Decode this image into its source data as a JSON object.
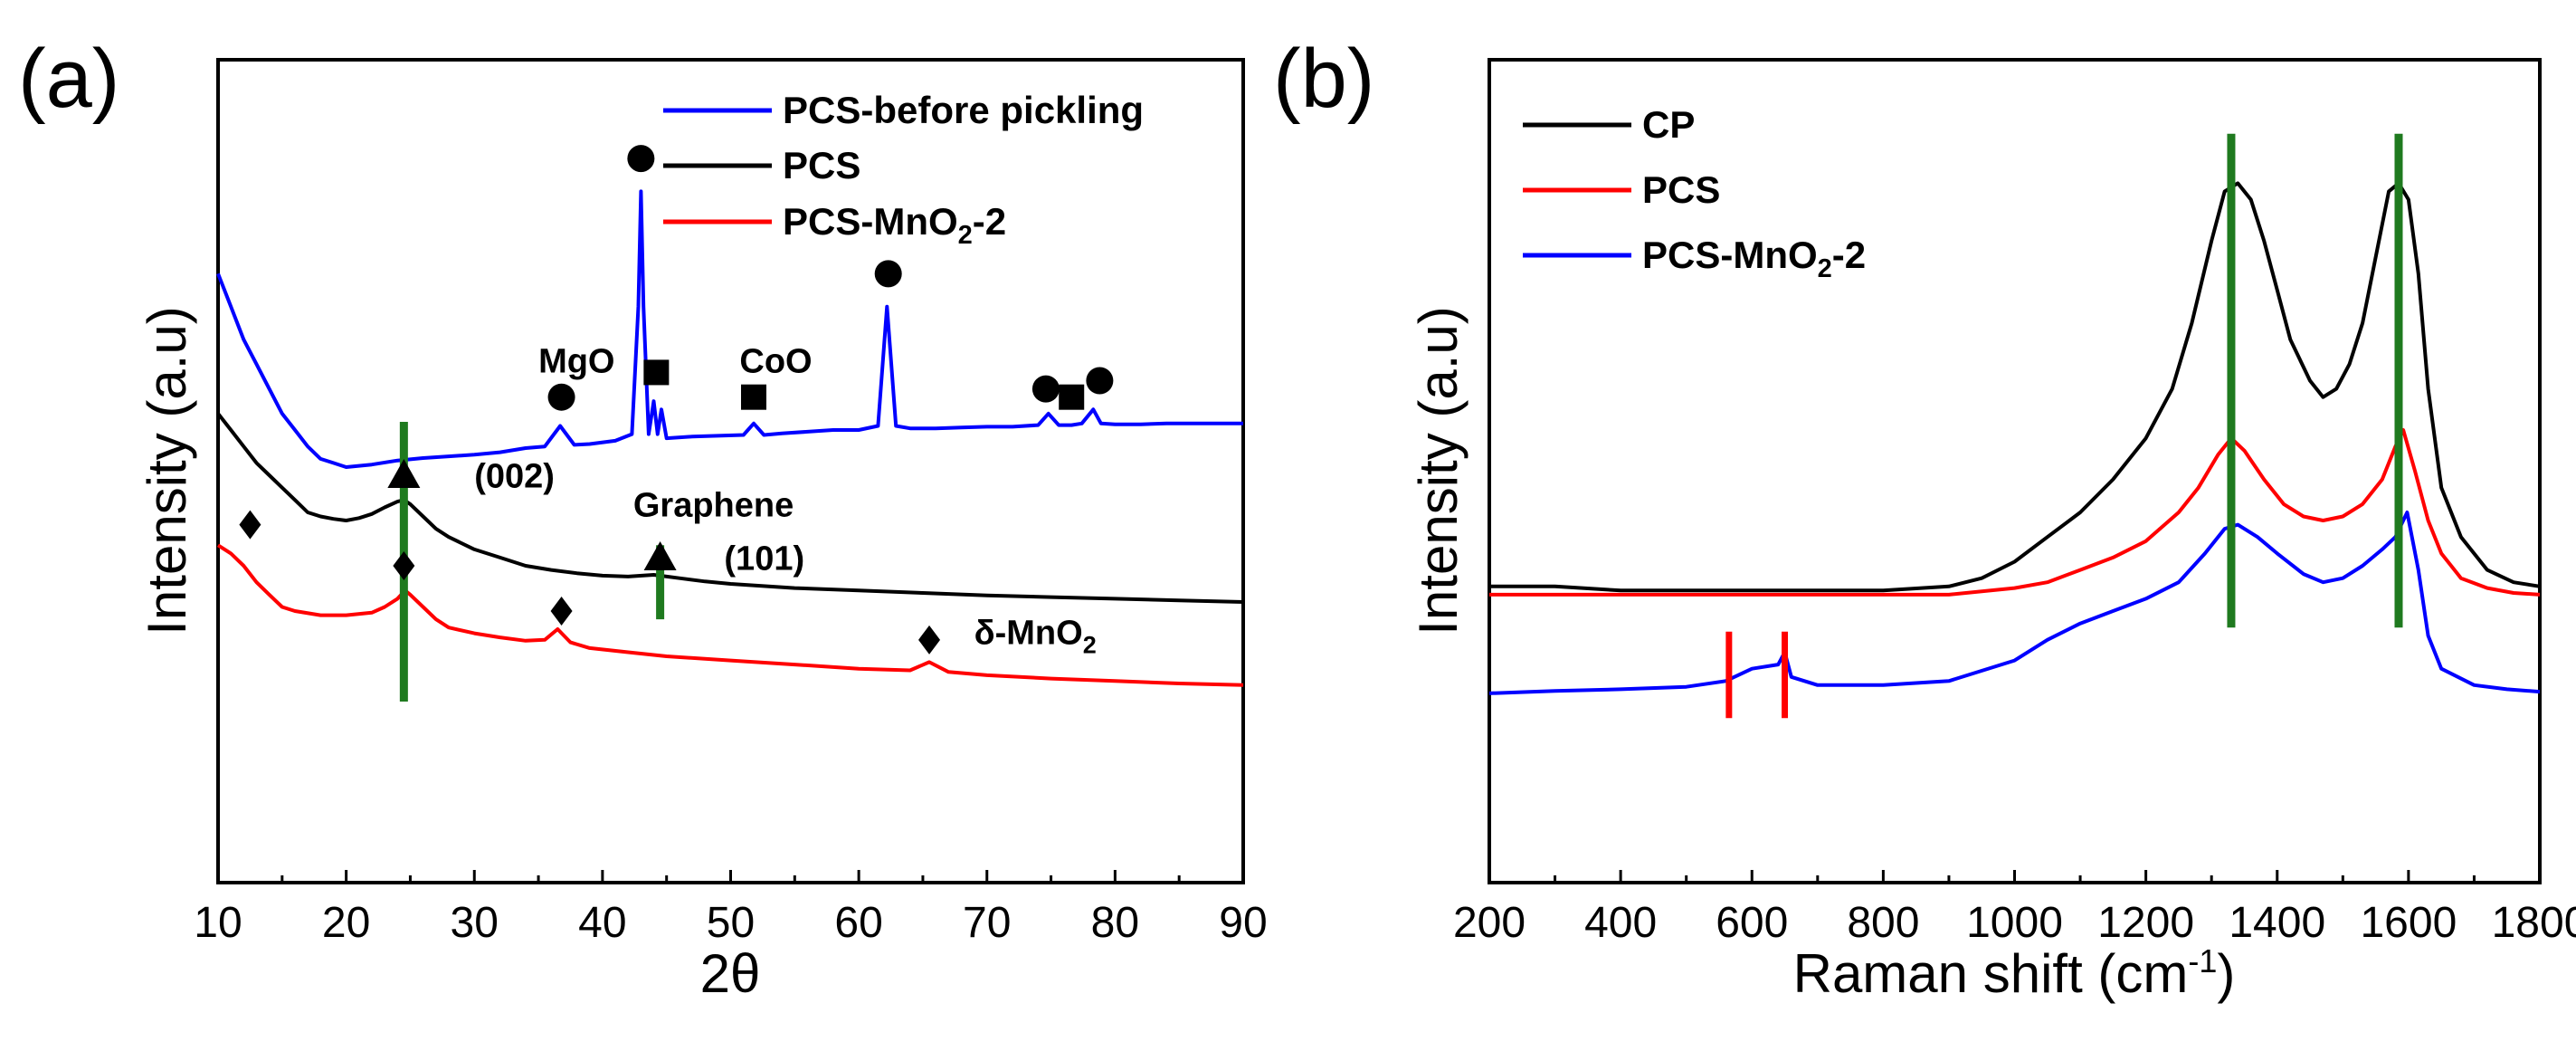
{
  "chart_data": [
    {
      "panel_label": "(a)",
      "type": "line",
      "xlabel": "2θ",
      "ylabel": "Intensity (a.u)",
      "xlim": [
        10,
        90
      ],
      "ylim": [
        0,
        100
      ],
      "x_ticks": [
        10,
        20,
        30,
        40,
        50,
        60,
        70,
        80,
        90
      ],
      "y_ticks_labeled": false,
      "grid": false,
      "legend_position": "top-right",
      "series": [
        {
          "name": "PCS-before pickling",
          "color": "#0000ff",
          "x": [
            10,
            11,
            12,
            13,
            14,
            15,
            16,
            17,
            18,
            19,
            20,
            22,
            24,
            26,
            28,
            30,
            32,
            34,
            35.5,
            36.7,
            37.8,
            39,
            41,
            42.3,
            42.8,
            43.0,
            43.2,
            43.6,
            44.0,
            44.3,
            44.6,
            45.0,
            47,
            49,
            51,
            51.8,
            52.6,
            54,
            56,
            58,
            60,
            61.5,
            62.2,
            62.9,
            64,
            66,
            68,
            70,
            72,
            74,
            74.8,
            75.6,
            76.6,
            77.4,
            78.3,
            78.9,
            80,
            82,
            84,
            86,
            88,
            90
          ],
          "y": [
            74,
            70,
            66,
            63,
            60,
            57,
            55,
            53,
            51.5,
            51,
            50.5,
            50.8,
            51.3,
            51.6,
            51.8,
            52,
            52.3,
            52.8,
            53,
            55.5,
            53.2,
            53.3,
            53.7,
            54.5,
            70,
            84,
            70,
            54.5,
            58.5,
            54.5,
            57.5,
            54,
            54.2,
            54.3,
            54.4,
            55.8,
            54.4,
            54.6,
            54.8,
            55,
            55,
            55.5,
            70,
            55.5,
            55.2,
            55.2,
            55.3,
            55.4,
            55.4,
            55.6,
            57,
            55.6,
            55.6,
            55.8,
            57.5,
            55.8,
            55.7,
            55.7,
            55.8,
            55.8,
            55.8,
            55.8
          ]
        },
        {
          "name": "PCS",
          "color": "#000000",
          "x": [
            10,
            11,
            12,
            13,
            14,
            15,
            16,
            17,
            18,
            19,
            20,
            21,
            22,
            23,
            24,
            24.5,
            25,
            26,
            27,
            28,
            30,
            32,
            34,
            36,
            38,
            40,
            42,
            44,
            46,
            48,
            50,
            55,
            60,
            65,
            70,
            75,
            80,
            85,
            90
          ],
          "y": [
            57,
            55,
            53,
            51,
            49.5,
            48,
            46.5,
            45,
            44.5,
            44.2,
            44,
            44.3,
            44.8,
            45.6,
            46.3,
            46.5,
            46,
            44.5,
            43,
            42,
            40.5,
            39.5,
            38.5,
            38,
            37.6,
            37.3,
            37.2,
            37.4,
            37,
            36.6,
            36.3,
            35.8,
            35.5,
            35.2,
            34.9,
            34.7,
            34.5,
            34.3,
            34.1
          ]
        },
        {
          "name": "PCS-MnO2-2",
          "color": "#ff0000",
          "x": [
            10,
            11,
            12,
            13,
            14,
            15,
            16,
            18,
            20,
            22,
            23,
            24,
            24.6,
            25,
            26,
            27,
            28,
            30,
            32,
            34,
            35.5,
            36.5,
            37.5,
            39,
            42,
            45,
            50,
            55,
            60,
            64,
            65.5,
            67,
            70,
            75,
            80,
            85,
            90
          ],
          "y": [
            41,
            40,
            38.5,
            36.5,
            35,
            33.5,
            33,
            32.5,
            32.5,
            32.8,
            33.5,
            34.5,
            35.5,
            35,
            33.5,
            32,
            31,
            30.3,
            29.8,
            29.4,
            29.5,
            30.8,
            29.2,
            28.5,
            28,
            27.5,
            27,
            26.5,
            26,
            25.8,
            26.8,
            25.6,
            25.2,
            24.8,
            24.5,
            24.2,
            24
          ]
        }
      ],
      "reference_lines": [
        {
          "x": 24.5,
          "color": "#1f7a1f"
        },
        {
          "x": 44.5,
          "color": "#1f7a1f"
        }
      ],
      "markers": [
        {
          "shape": "circle",
          "x": 36.8,
          "y": 59
        },
        {
          "shape": "circle",
          "x": 43.0,
          "y": 88
        },
        {
          "shape": "circle",
          "x": 62.3,
          "y": 74
        },
        {
          "shape": "circle",
          "x": 74.6,
          "y": 60
        },
        {
          "shape": "circle",
          "x": 78.8,
          "y": 61
        },
        {
          "shape": "square",
          "x": 44.2,
          "y": 62
        },
        {
          "shape": "square",
          "x": 51.8,
          "y": 59
        },
        {
          "shape": "square",
          "x": 76.6,
          "y": 59
        },
        {
          "shape": "triangle",
          "x": 24.5,
          "y": 49.5
        },
        {
          "shape": "triangle",
          "x": 44.5,
          "y": 39.5
        },
        {
          "shape": "diamond",
          "x": 12.5,
          "y": 43.5
        },
        {
          "shape": "diamond",
          "x": 24.5,
          "y": 38.5
        },
        {
          "shape": "diamond",
          "x": 36.8,
          "y": 33
        },
        {
          "shape": "diamond",
          "x": 65.5,
          "y": 29.5
        }
      ],
      "annotations": [
        {
          "text": "MgO",
          "x": 35,
          "y": 62
        },
        {
          "text": "CoO",
          "x": 50.7,
          "y": 62
        },
        {
          "text": "(002)",
          "x": 30,
          "y": 48
        },
        {
          "text": "Graphene",
          "x": 42.4,
          "y": 44.5
        },
        {
          "text": "(101)",
          "x": 49.5,
          "y": 38
        }
      ],
      "annotation_rich": {
        "prefix": "δ-MnO",
        "subscript": "2",
        "x": 69,
        "y": 29
      }
    },
    {
      "panel_label": "(b)",
      "type": "line",
      "xlabel_prefix": "Raman shift (cm",
      "xlabel_superscript": "-1",
      "xlabel_suffix": ")",
      "ylabel": "Intensity (a.u)",
      "xlim": [
        200,
        1800
      ],
      "ylim": [
        0,
        100
      ],
      "x_ticks": [
        200,
        400,
        600,
        800,
        1000,
        1200,
        1400,
        1600,
        1800
      ],
      "y_ticks_labeled": false,
      "grid": false,
      "legend_position": "top-left",
      "series": [
        {
          "name": "CP",
          "color": "#000000",
          "x": [
            200,
            300,
            400,
            500,
            600,
            700,
            800,
            900,
            950,
            1000,
            1050,
            1100,
            1150,
            1200,
            1240,
            1270,
            1300,
            1320,
            1340,
            1360,
            1380,
            1400,
            1420,
            1450,
            1470,
            1490,
            1510,
            1530,
            1550,
            1570,
            1585,
            1600,
            1615,
            1630,
            1650,
            1680,
            1720,
            1760,
            1800
          ],
          "y": [
            36,
            36,
            35.5,
            35.5,
            35.5,
            35.5,
            35.5,
            36,
            37,
            39,
            42,
            45,
            49,
            54,
            60,
            68,
            78,
            84,
            85,
            83,
            78,
            72,
            66,
            61,
            59,
            60,
            63,
            68,
            76,
            84,
            85,
            83,
            74,
            60,
            48,
            42,
            38,
            36.5,
            36
          ]
        },
        {
          "name": "PCS",
          "color": "#ff0000",
          "x": [
            200,
            300,
            400,
            500,
            600,
            700,
            800,
            900,
            1000,
            1050,
            1100,
            1150,
            1200,
            1250,
            1280,
            1310,
            1330,
            1350,
            1380,
            1410,
            1440,
            1470,
            1500,
            1530,
            1560,
            1580,
            1592,
            1610,
            1630,
            1650,
            1680,
            1720,
            1760,
            1800
          ],
          "y": [
            35,
            35,
            35,
            35,
            35,
            35,
            35,
            35,
            35.8,
            36.5,
            38,
            39.5,
            41.5,
            45,
            48,
            52,
            54,
            52.5,
            49,
            46,
            44.5,
            44,
            44.5,
            46,
            49,
            53,
            55,
            50,
            44,
            40,
            37,
            35.8,
            35.2,
            35
          ]
        },
        {
          "name": "PCS-MnO2-2",
          "color": "#0000ff",
          "x": [
            200,
            300,
            400,
            500,
            560,
            600,
            640,
            650,
            660,
            700,
            800,
            900,
            1000,
            1050,
            1100,
            1150,
            1200,
            1250,
            1290,
            1320,
            1340,
            1370,
            1400,
            1440,
            1470,
            1500,
            1530,
            1560,
            1580,
            1598,
            1615,
            1630,
            1650,
            1700,
            1750,
            1800
          ],
          "y": [
            23,
            23.3,
            23.5,
            23.8,
            24.5,
            26,
            26.5,
            28,
            25,
            24,
            24,
            24.5,
            27,
            29.5,
            31.5,
            33,
            34.5,
            36.5,
            40,
            43,
            43.5,
            42,
            40,
            37.5,
            36.5,
            37,
            38.5,
            40.5,
            42,
            45,
            38,
            30,
            26,
            24,
            23.5,
            23.2
          ]
        }
      ],
      "reference_lines_green": [
        {
          "x": 1330,
          "color": "#1f7a1f"
        },
        {
          "x": 1585,
          "color": "#1f7a1f"
        }
      ],
      "reference_lines_red": [
        {
          "x": 565,
          "color": "#ff0000"
        },
        {
          "x": 650,
          "color": "#ff0000"
        }
      ],
      "legend_labels": [
        {
          "prefix": "CP",
          "subscript": "",
          "suffix": ""
        },
        {
          "prefix": "PCS",
          "subscript": "",
          "suffix": ""
        },
        {
          "prefix": "PCS-MnO",
          "subscript": "2",
          "suffix": "-2"
        }
      ]
    }
  ],
  "legend_a": [
    {
      "prefix": "PCS-before pickling",
      "subscript": "",
      "suffix": ""
    },
    {
      "prefix": "PCS",
      "subscript": "",
      "suffix": ""
    },
    {
      "prefix": "PCS-MnO",
      "subscript": "2",
      "suffix": "-2"
    }
  ]
}
